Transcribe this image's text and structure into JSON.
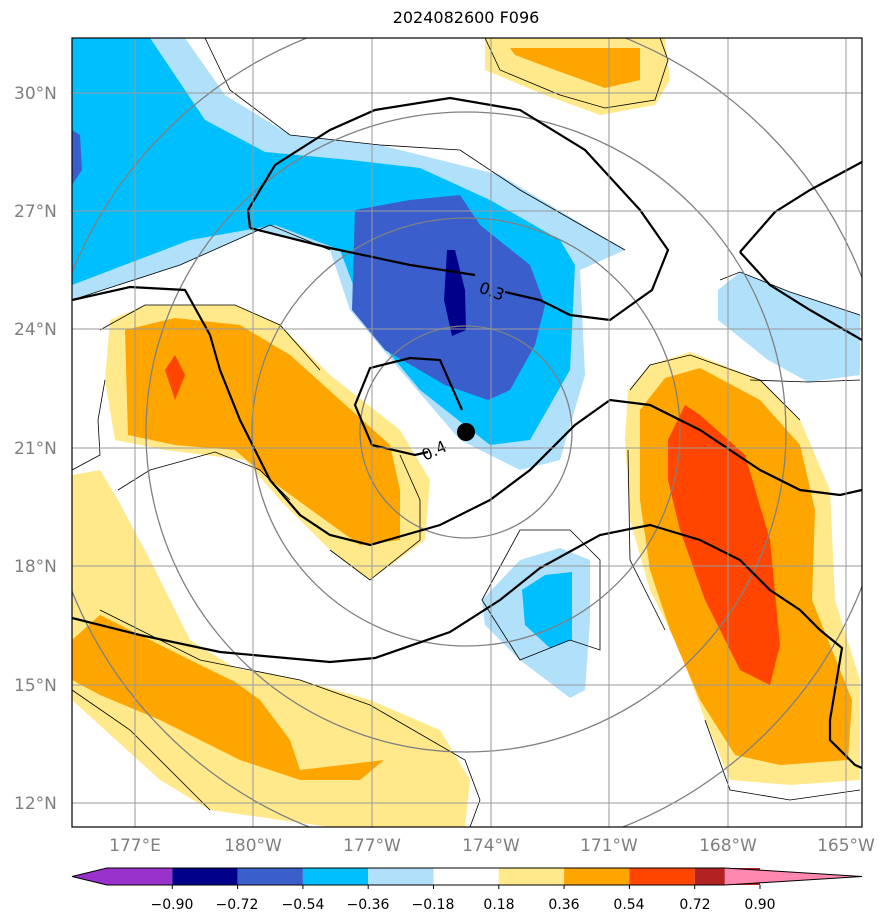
{
  "title": "2024082600 F096",
  "map": {
    "lat_labels": [
      "30°N",
      "27°N",
      "24°N",
      "21°N",
      "18°N",
      "15°N",
      "12°N"
    ],
    "lon_labels": [
      "177°E",
      "180°W",
      "177°W",
      "174°W",
      "171°W",
      "168°W",
      "165°W"
    ],
    "contour_labels": [
      "0.3",
      "0.4"
    ],
    "center_marker": "storm-center"
  },
  "colorbar": {
    "ticks": [
      "−0.90",
      "−0.72",
      "−0.54",
      "−0.36",
      "−0.18",
      "0.18",
      "0.36",
      "0.54",
      "0.72",
      "0.90"
    ],
    "colors": [
      "#9932cc",
      "#00008b",
      "#3a5fcd",
      "#00bfff",
      "#b0e0fa",
      "#ffffff",
      "#ffe98a",
      "#ffa500",
      "#ff4500",
      "#b22222",
      "#ff88b0"
    ]
  },
  "colors": {
    "land": "#ffffff",
    "grid": "#999999",
    "frame": "#000000",
    "ring": "#808080"
  }
}
